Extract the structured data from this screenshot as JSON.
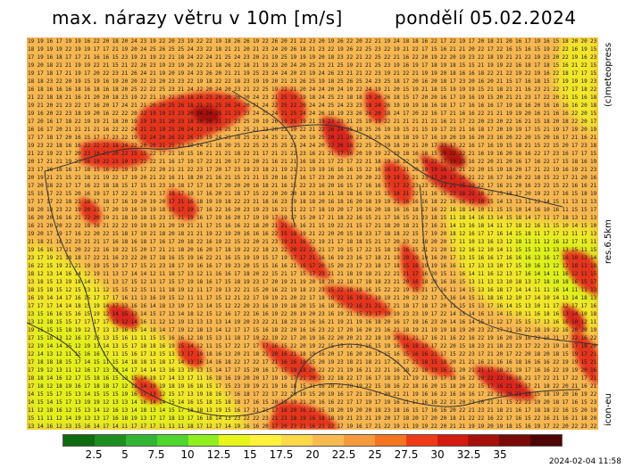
{
  "title": "max. nárazy větru v 10m [m/s]",
  "date": "pondělí 05.02.2024",
  "side_labels": {
    "copyright": "(c)meteopress",
    "resolution": "res.6.5km",
    "model": "icon-eu"
  },
  "timestamp": "2024-02-04 11:58",
  "legend": {
    "colors": [
      "#0f6b0f",
      "#1e8f1e",
      "#33b533",
      "#4fd62e",
      "#8fef1f",
      "#e8f51a",
      "#fff23a",
      "#ffd84a",
      "#f9bb4f",
      "#f79a3c",
      "#f4741f",
      "#ee3a16",
      "#d41b11",
      "#a8100c",
      "#7a0a08",
      "#4f0505"
    ],
    "ticks": [
      "2.5",
      "5",
      "7.5",
      "10",
      "12.5",
      "15",
      "17.5",
      "20",
      "22.5",
      "25",
      "27.5",
      "30",
      "32.5",
      "35"
    ]
  }
}
